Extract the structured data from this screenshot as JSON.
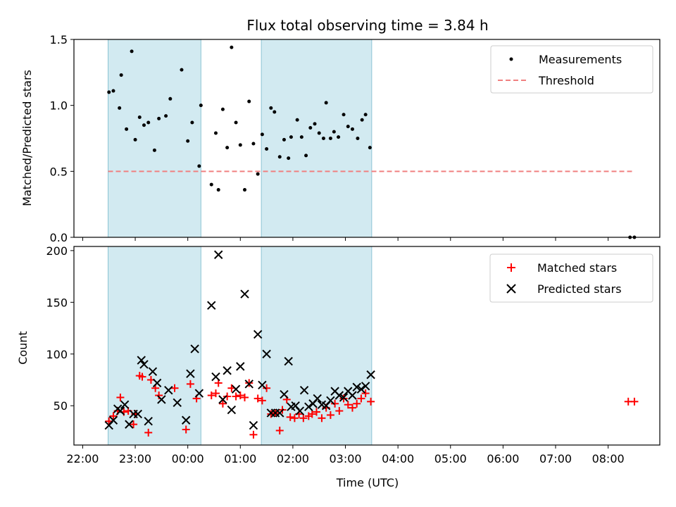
{
  "chart_data": [
    {
      "type": "scatter",
      "title": "Flux total observing time = 3.84 h",
      "xlabel": "",
      "ylabel": "Matched/Predicted stars",
      "xlim": [
        "21:50",
        "08:59"
      ],
      "ylim": [
        0,
        1.5
      ],
      "yticks": [
        "0.0",
        "0.5",
        "1.0",
        "1.5"
      ],
      "shaded_intervals": [
        [
          "22:29",
          "00:15"
        ],
        [
          "01:24",
          "03:30"
        ]
      ],
      "grid": false,
      "legend": "top-right",
      "series": [
        {
          "name": "Measurements",
          "marker": "dot",
          "color": "#000000",
          "points": [
            [
              "22:30",
              1.1
            ],
            [
              "22:35",
              1.11
            ],
            [
              "22:42",
              0.98
            ],
            [
              "22:44",
              1.23
            ],
            [
              "22:50",
              0.82
            ],
            [
              "22:56",
              1.41
            ],
            [
              "23:00",
              0.74
            ],
            [
              "23:05",
              0.91
            ],
            [
              "23:10",
              0.85
            ],
            [
              "23:15",
              0.87
            ],
            [
              "23:22",
              0.66
            ],
            [
              "23:27",
              0.9
            ],
            [
              "23:35",
              0.92
            ],
            [
              "23:40",
              1.05
            ],
            [
              "23:53",
              1.27
            ],
            [
              "00:00",
              0.73
            ],
            [
              "00:05",
              0.87
            ],
            [
              "00:13",
              0.54
            ],
            [
              "00:15",
              1.0
            ],
            [
              "00:27",
              0.4
            ],
            [
              "00:32",
              0.79
            ],
            [
              "00:35",
              0.36
            ],
            [
              "00:40",
              0.97
            ],
            [
              "00:45",
              0.68
            ],
            [
              "00:50",
              1.44
            ],
            [
              "00:55",
              0.87
            ],
            [
              "01:00",
              0.7
            ],
            [
              "01:05",
              0.36
            ],
            [
              "01:10",
              1.03
            ],
            [
              "01:15",
              0.71
            ],
            [
              "01:20",
              0.48
            ],
            [
              "01:25",
              0.78
            ],
            [
              "01:30",
              0.67
            ],
            [
              "01:35",
              0.98
            ],
            [
              "01:39",
              0.95
            ],
            [
              "01:45",
              0.61
            ],
            [
              "01:50",
              0.74
            ],
            [
              "01:55",
              0.6
            ],
            [
              "01:58",
              0.76
            ],
            [
              "02:05",
              0.89
            ],
            [
              "02:10",
              0.76
            ],
            [
              "02:15",
              0.62
            ],
            [
              "02:20",
              0.83
            ],
            [
              "02:25",
              0.86
            ],
            [
              "02:30",
              0.79
            ],
            [
              "02:35",
              0.75
            ],
            [
              "02:38",
              1.02
            ],
            [
              "02:43",
              0.75
            ],
            [
              "02:47",
              0.8
            ],
            [
              "02:52",
              0.76
            ],
            [
              "02:58",
              0.93
            ],
            [
              "03:03",
              0.84
            ],
            [
              "03:08",
              0.82
            ],
            [
              "03:14",
              0.75
            ],
            [
              "03:19",
              0.89
            ],
            [
              "03:23",
              0.93
            ],
            [
              "03:28",
              0.68
            ],
            [
              "08:25",
              0.0
            ],
            [
              "08:30",
              0.0
            ]
          ]
        },
        {
          "name": "Threshold",
          "type": "line",
          "style": "dashed",
          "color": "#f08080",
          "points": [
            [
              "22:29",
              0.5
            ],
            [
              "08:30",
              0.5
            ]
          ]
        }
      ]
    },
    {
      "type": "scatter",
      "title": "",
      "xlabel": "Time (UTC)",
      "ylabel": "Count",
      "xlim": [
        "21:50",
        "08:59"
      ],
      "ylim": [
        12,
        204
      ],
      "yticks": [
        "50",
        "100",
        "150",
        "200"
      ],
      "xticks": [
        "22:00",
        "23:00",
        "00:00",
        "01:00",
        "02:00",
        "03:00",
        "04:00",
        "05:00",
        "06:00",
        "07:00",
        "08:00"
      ],
      "shaded_intervals": [
        [
          "22:29",
          "00:15"
        ],
        [
          "01:24",
          "03:30"
        ]
      ],
      "grid": false,
      "legend": "top-right",
      "series": [
        {
          "name": "Matched stars",
          "marker": "plus",
          "color": "#ff0000",
          "points": [
            [
              "22:30",
              35
            ],
            [
              "22:35",
              40
            ],
            [
              "22:40",
              45
            ],
            [
              "22:43",
              58
            ],
            [
              "22:47",
              44
            ],
            [
              "22:52",
              45
            ],
            [
              "22:58",
              32
            ],
            [
              "23:00",
              42
            ],
            [
              "23:05",
              79
            ],
            [
              "23:08",
              78
            ],
            [
              "23:15",
              24
            ],
            [
              "23:18",
              75
            ],
            [
              "23:23",
              67
            ],
            [
              "23:27",
              60
            ],
            [
              "23:45",
              67
            ],
            [
              "23:58",
              27
            ],
            [
              "00:03",
              71
            ],
            [
              "00:10",
              57
            ],
            [
              "00:27",
              60
            ],
            [
              "00:32",
              62
            ],
            [
              "00:35",
              72
            ],
            [
              "00:40",
              52
            ],
            [
              "00:45",
              59
            ],
            [
              "00:50",
              67
            ],
            [
              "00:55",
              59
            ],
            [
              "01:00",
              60
            ],
            [
              "01:05",
              58
            ],
            [
              "01:10",
              72
            ],
            [
              "01:15",
              22
            ],
            [
              "01:20",
              57
            ],
            [
              "01:25",
              55
            ],
            [
              "01:30",
              67
            ],
            [
              "01:35",
              42
            ],
            [
              "01:40",
              43
            ],
            [
              "01:45",
              26
            ],
            [
              "01:48",
              46
            ],
            [
              "01:53",
              56
            ],
            [
              "01:57",
              39
            ],
            [
              "02:02",
              38
            ],
            [
              "02:07",
              42
            ],
            [
              "02:12",
              38
            ],
            [
              "02:18",
              40
            ],
            [
              "02:22",
              42
            ],
            [
              "02:27",
              44
            ],
            [
              "02:33",
              38
            ],
            [
              "02:38",
              48
            ],
            [
              "02:43",
              41
            ],
            [
              "02:48",
              52
            ],
            [
              "02:53",
              45
            ],
            [
              "02:58",
              57
            ],
            [
              "03:03",
              51
            ],
            [
              "03:08",
              48
            ],
            [
              "03:13",
              52
            ],
            [
              "03:18",
              57
            ],
            [
              "03:23",
              62
            ],
            [
              "03:29",
              54
            ],
            [
              "08:23",
              54
            ],
            [
              "08:30",
              54
            ]
          ]
        },
        {
          "name": "Predicted stars",
          "marker": "x",
          "color": "#000000",
          "points": [
            [
              "22:30",
              31
            ],
            [
              "22:35",
              36
            ],
            [
              "22:40",
              47
            ],
            [
              "22:43",
              45
            ],
            [
              "22:48",
              51
            ],
            [
              "22:53",
              32
            ],
            [
              "22:58",
              42
            ],
            [
              "23:03",
              42
            ],
            [
              "23:07",
              94
            ],
            [
              "23:10",
              90
            ],
            [
              "23:15",
              35
            ],
            [
              "23:20",
              83
            ],
            [
              "23:25",
              72
            ],
            [
              "23:30",
              56
            ],
            [
              "23:38",
              65
            ],
            [
              "23:48",
              53
            ],
            [
              "23:58",
              36
            ],
            [
              "00:03",
              81
            ],
            [
              "00:08",
              105
            ],
            [
              "00:13",
              62
            ],
            [
              "00:27",
              147
            ],
            [
              "00:32",
              78
            ],
            [
              "00:35",
              196
            ],
            [
              "00:40",
              56
            ],
            [
              "00:45",
              84
            ],
            [
              "00:50",
              46
            ],
            [
              "00:55",
              66
            ],
            [
              "01:00",
              88
            ],
            [
              "01:05",
              158
            ],
            [
              "01:10",
              71
            ],
            [
              "01:15",
              31
            ],
            [
              "01:20",
              119
            ],
            [
              "01:25",
              70
            ],
            [
              "01:30",
              100
            ],
            [
              "01:35",
              43
            ],
            [
              "01:40",
              43
            ],
            [
              "01:45",
              43
            ],
            [
              "01:50",
              61
            ],
            [
              "01:55",
              93
            ],
            [
              "01:58",
              49
            ],
            [
              "02:03",
              50
            ],
            [
              "02:08",
              45
            ],
            [
              "02:13",
              65
            ],
            [
              "02:18",
              49
            ],
            [
              "02:23",
              52
            ],
            [
              "02:28",
              57
            ],
            [
              "02:33",
              51
            ],
            [
              "02:38",
              50
            ],
            [
              "02:43",
              55
            ],
            [
              "02:48",
              64
            ],
            [
              "02:53",
              60
            ],
            [
              "02:58",
              58
            ],
            [
              "03:03",
              64
            ],
            [
              "03:08",
              60
            ],
            [
              "03:13",
              68
            ],
            [
              "03:18",
              66
            ],
            [
              "03:23",
              69
            ],
            [
              "03:29",
              80
            ]
          ]
        }
      ]
    }
  ],
  "colors": {
    "shade": "#add8e6",
    "frame": "#000000"
  }
}
